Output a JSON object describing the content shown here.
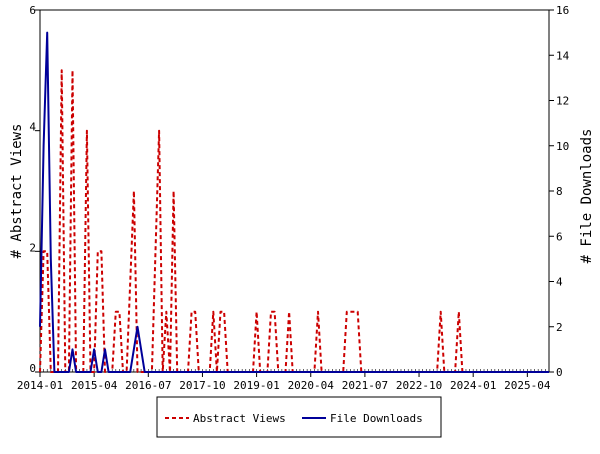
{
  "chart_data": {
    "type": "line",
    "title": "",
    "xlabel": "",
    "ylabel": "# Abstract Views",
    "ylabel_right": "# File Downloads",
    "xlim": [
      "2014-01",
      "2025-10"
    ],
    "ylim": [
      0,
      6
    ],
    "ylim_right": [
      0,
      16
    ],
    "x_tick_labels": [
      "2014-01",
      "2015-04",
      "2016-07",
      "2017-10",
      "2019-01",
      "2020-04",
      "2021-07",
      "2022-10",
      "2024-01",
      "2025-04"
    ],
    "y_ticks": [
      0,
      2,
      4,
      6
    ],
    "y_ticks_right": [
      0,
      2,
      4,
      6,
      8,
      10,
      12,
      14,
      16
    ],
    "grid": false,
    "legend_position": "bottom-center",
    "series": [
      {
        "name": "Abstract Views",
        "axis": "left",
        "color": "#cc0000",
        "style": "dashed",
        "points": [
          [
            "2014-01",
            0
          ],
          [
            "2014-02",
            2
          ],
          [
            "2014-03",
            2
          ],
          [
            "2014-04",
            0
          ],
          [
            "2014-06",
            0
          ],
          [
            "2014-07",
            5
          ],
          [
            "2014-08",
            0
          ],
          [
            "2014-09",
            0
          ],
          [
            "2014-10",
            5
          ],
          [
            "2014-11",
            0
          ],
          [
            "2015-01",
            0
          ],
          [
            "2015-02",
            4
          ],
          [
            "2015-03",
            0
          ],
          [
            "2015-04",
            0
          ],
          [
            "2015-05",
            2
          ],
          [
            "2015-06",
            2
          ],
          [
            "2015-07",
            0
          ],
          [
            "2015-09",
            0
          ],
          [
            "2015-10",
            1
          ],
          [
            "2015-11",
            1
          ],
          [
            "2015-12",
            0
          ],
          [
            "2016-01",
            0
          ],
          [
            "2016-03",
            3
          ],
          [
            "2016-04",
            0
          ],
          [
            "2016-08",
            0
          ],
          [
            "2016-10",
            4
          ],
          [
            "2016-11",
            0
          ],
          [
            "2016-12",
            1
          ],
          [
            "2017-01",
            0
          ],
          [
            "2017-02",
            3
          ],
          [
            "2017-03",
            0
          ],
          [
            "2017-06",
            0
          ],
          [
            "2017-07",
            1
          ],
          [
            "2017-08",
            1
          ],
          [
            "2017-09",
            0
          ],
          [
            "2017-12",
            0
          ],
          [
            "2018-01",
            1
          ],
          [
            "2018-02",
            0
          ],
          [
            "2018-03",
            1
          ],
          [
            "2018-04",
            1
          ],
          [
            "2018-05",
            0
          ],
          [
            "2018-12",
            0
          ],
          [
            "2019-01",
            1
          ],
          [
            "2019-02",
            0
          ],
          [
            "2019-04",
            0
          ],
          [
            "2019-05",
            1
          ],
          [
            "2019-06",
            1
          ],
          [
            "2019-07",
            0
          ],
          [
            "2019-09",
            0
          ],
          [
            "2019-10",
            1
          ],
          [
            "2019-11",
            0
          ],
          [
            "2020-05",
            0
          ],
          [
            "2020-06",
            1
          ],
          [
            "2020-07",
            0
          ],
          [
            "2021-01",
            0
          ],
          [
            "2021-02",
            1
          ],
          [
            "2021-05",
            1
          ],
          [
            "2021-06",
            0
          ],
          [
            "2023-03",
            0
          ],
          [
            "2023-04",
            1
          ],
          [
            "2023-05",
            0
          ],
          [
            "2023-08",
            0
          ],
          [
            "2023-09",
            1
          ],
          [
            "2023-10",
            0
          ],
          [
            "2025-10",
            0
          ]
        ]
      },
      {
        "name": "File Downloads",
        "axis": "right",
        "color": "#000099",
        "style": "solid",
        "points": [
          [
            "2014-01",
            2
          ],
          [
            "2014-02",
            10
          ],
          [
            "2014-03",
            15
          ],
          [
            "2014-04",
            5
          ],
          [
            "2014-05",
            0
          ],
          [
            "2014-09",
            0
          ],
          [
            "2014-10",
            1
          ],
          [
            "2014-11",
            0
          ],
          [
            "2015-03",
            0
          ],
          [
            "2015-04",
            1
          ],
          [
            "2015-05",
            0
          ],
          [
            "2015-06",
            0
          ],
          [
            "2015-07",
            1
          ],
          [
            "2015-08",
            0
          ],
          [
            "2016-02",
            0
          ],
          [
            "2016-04",
            2
          ],
          [
            "2016-06",
            0
          ],
          [
            "2025-10",
            0
          ]
        ]
      }
    ]
  }
}
